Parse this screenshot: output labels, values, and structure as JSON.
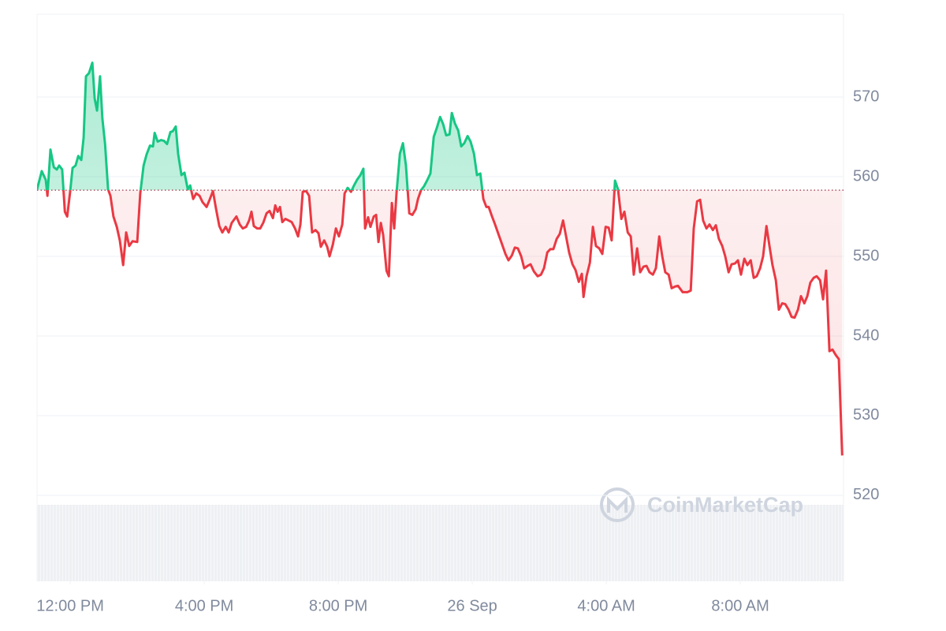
{
  "chart_data": {
    "type": "line",
    "watermark": "CoinMarketCap",
    "color_up": "#16c784",
    "color_down": "#ea3943",
    "baseline": 558.3,
    "grid": true,
    "xlim": [
      -0.99,
      23.08
    ],
    "ylim": [
      509.2,
      580.4
    ],
    "yticks": [
      520,
      530,
      540,
      550,
      560,
      570
    ],
    "xticks": [
      {
        "value": 0,
        "label": "12:00 PM"
      },
      {
        "value": 4,
        "label": "4:00 PM"
      },
      {
        "value": 8,
        "label": "8:00 PM"
      },
      {
        "value": 12,
        "label": "26 Sep"
      },
      {
        "value": 16,
        "label": "4:00 AM"
      },
      {
        "value": 20,
        "label": "8:00 AM"
      }
    ],
    "x": [
      -0.99,
      -0.85,
      -0.73,
      -0.68,
      -0.59,
      -0.49,
      -0.4,
      -0.33,
      -0.24,
      -0.16,
      -0.09,
      0,
      0.07,
      0.16,
      0.24,
      0.33,
      0.4,
      0.47,
      0.56,
      0.66,
      0.73,
      0.8,
      0.89,
      0.96,
      1.04,
      1.13,
      1.2,
      1.29,
      1.39,
      1.48,
      1.58,
      1.67,
      1.76,
      1.86,
      2.0,
      2.09,
      2.19,
      2.28,
      2.38,
      2.47,
      2.52,
      2.61,
      2.71,
      2.8,
      2.89,
      2.99,
      3.06,
      3.15,
      3.22,
      3.32,
      3.41,
      3.51,
      3.58,
      3.67,
      3.76,
      3.86,
      3.95,
      4.07,
      4.16,
      4.26,
      4.35,
      4.45,
      4.54,
      4.64,
      4.73,
      4.82,
      4.96,
      5.06,
      5.15,
      5.25,
      5.34,
      5.41,
      5.48,
      5.58,
      5.67,
      5.76,
      5.86,
      5.95,
      6.05,
      6.12,
      6.19,
      6.26,
      6.33,
      6.42,
      6.52,
      6.61,
      6.71,
      6.8,
      6.87,
      6.94,
      7.04,
      7.13,
      7.22,
      7.32,
      7.41,
      7.48,
      7.58,
      7.67,
      7.74,
      7.84,
      7.93,
      8.02,
      8.12,
      8.19,
      8.28,
      8.38,
      8.47,
      8.56,
      8.66,
      8.75,
      8.8,
      8.89,
      8.96,
      9.06,
      9.13,
      9.2,
      9.27,
      9.34,
      9.44,
      9.51,
      9.6,
      9.67,
      9.74,
      9.84,
      9.93,
      10.02,
      10.12,
      10.21,
      10.31,
      10.38,
      10.47,
      10.56,
      10.66,
      10.75,
      10.85,
      10.94,
      11.04,
      11.13,
      11.22,
      11.32,
      11.39,
      11.48,
      11.58,
      11.67,
      11.76,
      11.86,
      11.95,
      12.05,
      12.14,
      12.24,
      12.33,
      12.42,
      12.49,
      12.59,
      12.68,
      12.78,
      12.89,
      12.99,
      13.08,
      13.18,
      13.27,
      13.36,
      13.46,
      13.55,
      13.65,
      13.74,
      13.84,
      13.95,
      14.05,
      14.14,
      14.24,
      14.33,
      14.42,
      14.52,
      14.61,
      14.71,
      14.8,
      14.89,
      14.99,
      15.08,
      15.18,
      15.27,
      15.32,
      15.41,
      15.51,
      15.6,
      15.69,
      15.79,
      15.88,
      15.98,
      16.07,
      16.16,
      16.26,
      16.35,
      16.45,
      16.54,
      16.64,
      16.73,
      16.82,
      16.92,
      17.01,
      17.11,
      17.2,
      17.29,
      17.39,
      17.48,
      17.58,
      17.67,
      17.76,
      17.86,
      17.95,
      18.05,
      18.14,
      18.28,
      18.42,
      18.52,
      18.61,
      18.71,
      18.8,
      18.89,
      18.99,
      19.08,
      19.18,
      19.27,
      19.36,
      19.46,
      19.55,
      19.65,
      19.74,
      19.84,
      19.93,
      20.02,
      20.12,
      20.21,
      20.31,
      20.4,
      20.49,
      20.59,
      20.68,
      20.78,
      20.87,
      20.96,
      21.06,
      21.15,
      21.25,
      21.34,
      21.44,
      21.53,
      21.62,
      21.72,
      21.81,
      21.91,
      22.0,
      22.09,
      22.19,
      22.28,
      22.38,
      22.47,
      22.56,
      22.66,
      22.75,
      22.85,
      22.94,
      23.04
    ],
    "values": [
      558.4,
      560.7,
      559.6,
      557.6,
      563.4,
      561.2,
      560.9,
      561.4,
      560.9,
      555.6,
      555.0,
      558.2,
      561.1,
      561.4,
      562.6,
      562.1,
      564.9,
      572.6,
      573.0,
      574.3,
      569.8,
      568.3,
      572.6,
      567.3,
      564.1,
      558.4,
      557.6,
      555.0,
      553.7,
      552.0,
      548.9,
      553.0,
      551.3,
      551.9,
      551.8,
      557.9,
      561.4,
      562.8,
      563.9,
      563.8,
      565.5,
      564.4,
      564.6,
      564.5,
      564.1,
      565.6,
      565.7,
      566.3,
      562.9,
      560.2,
      560.5,
      558.4,
      558.9,
      557.2,
      557.9,
      557.6,
      556.8,
      556.2,
      557.1,
      558.2,
      556.0,
      553.8,
      553.0,
      553.7,
      553.0,
      554.2,
      555.0,
      554.0,
      553.5,
      553.7,
      554.5,
      555.6,
      553.8,
      553.5,
      553.5,
      554.2,
      555.4,
      555.7,
      554.8,
      556.4,
      555.6,
      556.2,
      554.3,
      554.7,
      554.5,
      554.3,
      553.5,
      552.5,
      554.0,
      558.1,
      558.2,
      557.6,
      553.0,
      553.3,
      552.9,
      551.2,
      552.0,
      551.2,
      550.0,
      551.5,
      553.5,
      552.5,
      554.0,
      557.9,
      558.6,
      558.1,
      558.9,
      559.6,
      560.2,
      561.0,
      553.5,
      554.9,
      553.7,
      555.0,
      555.2,
      551.8,
      554.2,
      552.7,
      548.2,
      547.5,
      556.7,
      553.5,
      558.0,
      562.9,
      564.2,
      561.4,
      555.4,
      555.2,
      555.9,
      557.2,
      558.3,
      558.8,
      559.6,
      560.4,
      565.0,
      566.1,
      567.5,
      566.6,
      565.2,
      565.3,
      568.0,
      566.7,
      565.8,
      563.8,
      564.2,
      565.1,
      564.4,
      562.9,
      560.2,
      560.4,
      557.2,
      556.2,
      556.2,
      555.0,
      554.0,
      552.8,
      551.5,
      550.3,
      549.5,
      550.1,
      551.1,
      551.0,
      550.0,
      548.5,
      548.8,
      549.0,
      548.1,
      547.5,
      547.7,
      548.5,
      550.5,
      550.9,
      550.9,
      552.2,
      552.8,
      554.5,
      552.5,
      550.5,
      549.0,
      548.3,
      546.8,
      547.8,
      544.9,
      547.5,
      549.2,
      553.7,
      551.3,
      551.0,
      550.3,
      553.7,
      553.6,
      552.0,
      559.5,
      558.4,
      554.7,
      555.6,
      553.0,
      552.5,
      547.7,
      551.0,
      548.0,
      548.7,
      548.8,
      548.0,
      547.7,
      548.5,
      552.5,
      550.0,
      548.0,
      547.7,
      546.0,
      546.2,
      546.3,
      545.5,
      545.5,
      545.7,
      553.5,
      556.9,
      557.1,
      554.5,
      553.5,
      554.0,
      553.3,
      553.9,
      552.2,
      551.3,
      550.0,
      548.0,
      549.0,
      549.1,
      549.5,
      547.7,
      549.7,
      548.9,
      549.5,
      547.3,
      547.5,
      548.5,
      550.0,
      553.8,
      551.3,
      548.9,
      547.0,
      543.3,
      544.1,
      544.0,
      543.3,
      542.4,
      542.3,
      543.3,
      545.0,
      544.1,
      545.0,
      546.7,
      547.3,
      547.5,
      547.0,
      544.6,
      548.2,
      538.1,
      538.3,
      537.6,
      537.1,
      525.0
    ]
  }
}
